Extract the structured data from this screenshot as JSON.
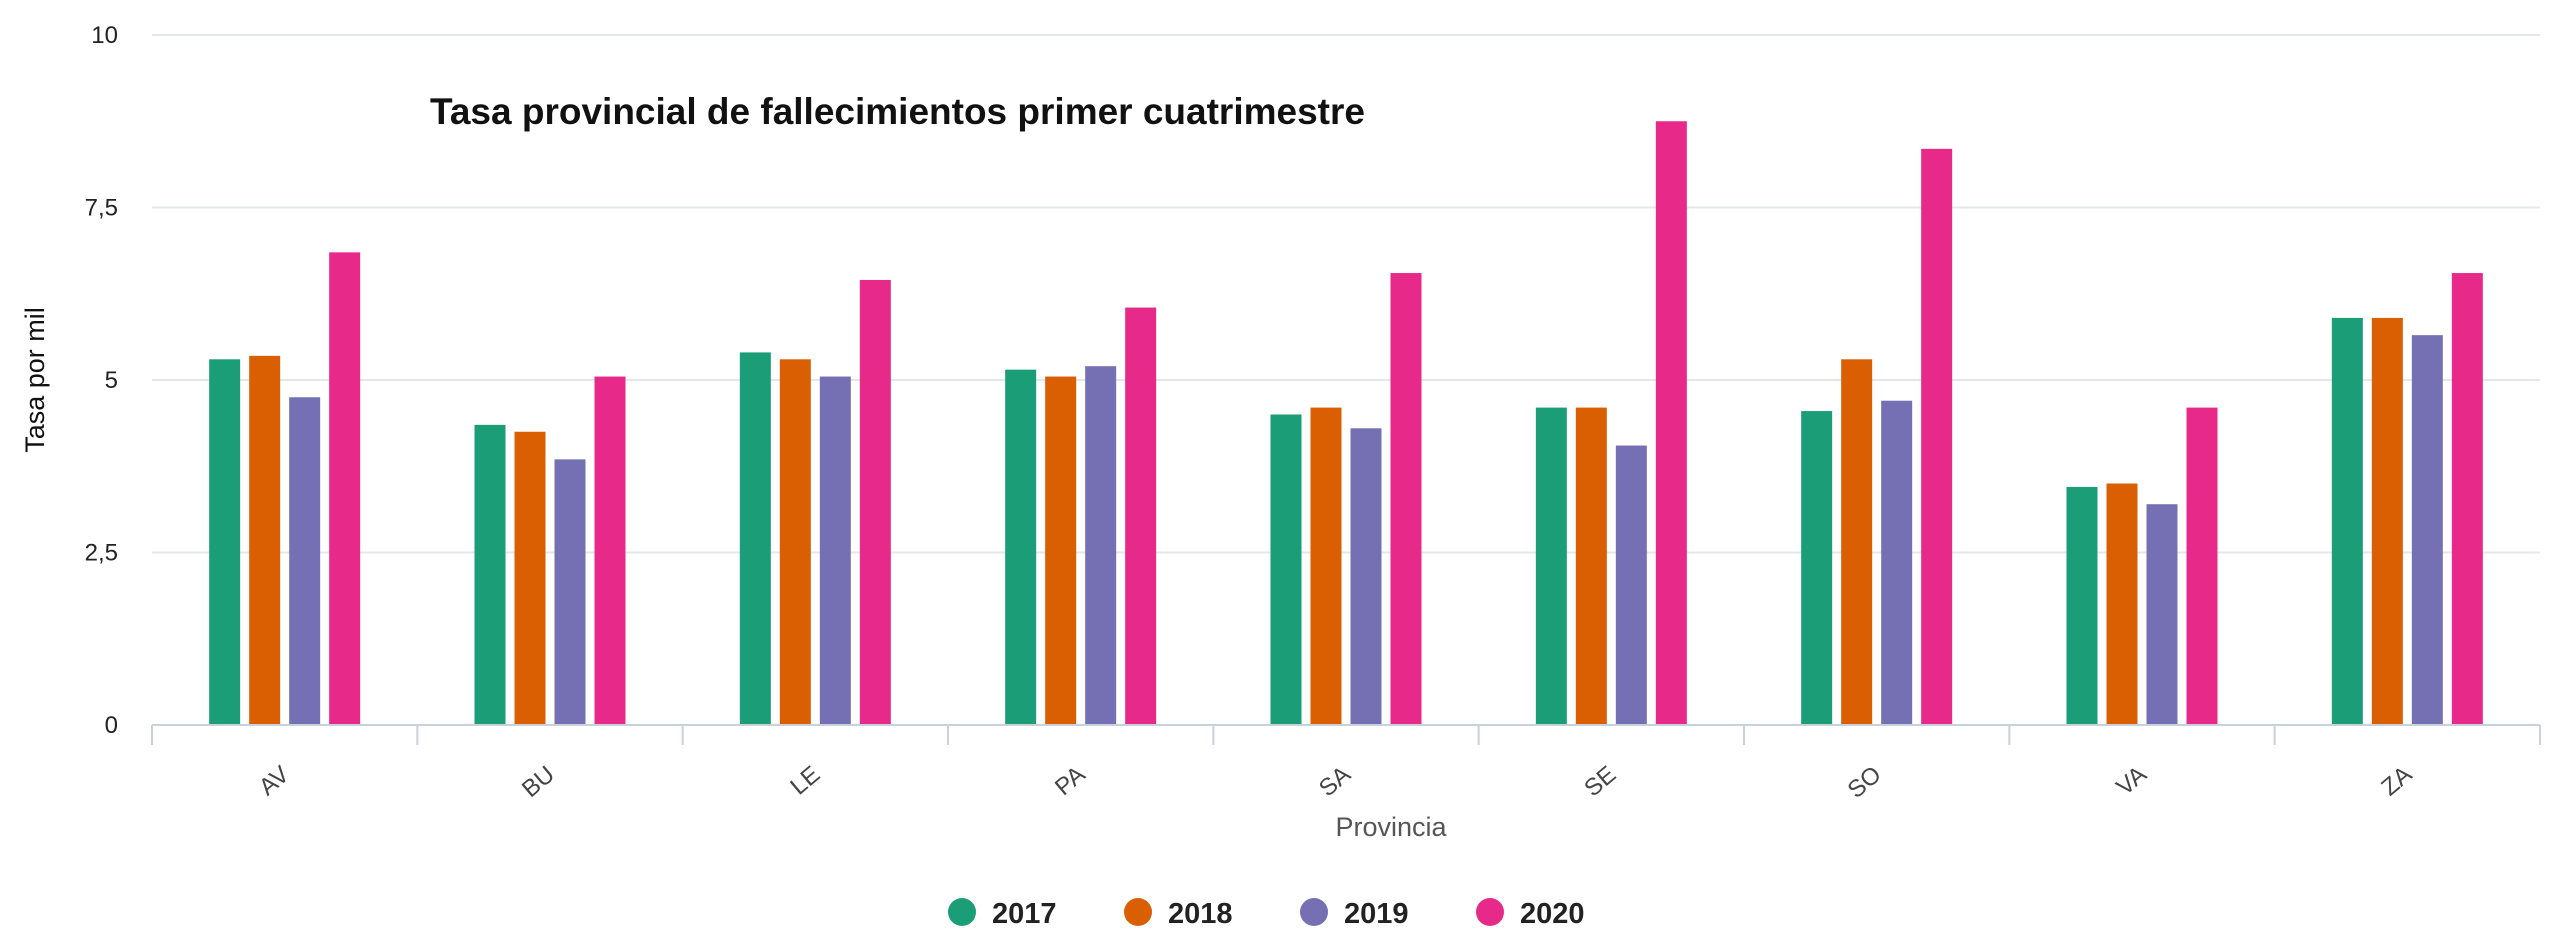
{
  "chart_data": {
    "type": "bar",
    "title": "Tasa provincial de fallecimientos primer cuatrimestre",
    "xlabel": "Provincia",
    "ylabel": "Tasa por mil",
    "ylim": [
      0,
      10
    ],
    "yticks": [
      0,
      2.5,
      5,
      7.5,
      10
    ],
    "ytick_labels": [
      "0",
      "2,5",
      "5",
      "7,5",
      "10"
    ],
    "categories": [
      "AV",
      "BU",
      "LE",
      "PA",
      "SA",
      "SE",
      "SO",
      "VA",
      "ZA"
    ],
    "grid": true,
    "legend_position": "bottom-center",
    "series": [
      {
        "name": "2017",
        "color": "#1b9e77",
        "values": [
          5.3,
          4.35,
          5.4,
          5.15,
          4.5,
          4.6,
          4.55,
          3.45,
          5.9
        ]
      },
      {
        "name": "2018",
        "color": "#d95f02",
        "values": [
          5.35,
          4.25,
          5.3,
          5.05,
          4.6,
          4.6,
          5.3,
          3.5,
          5.9
        ]
      },
      {
        "name": "2019",
        "color": "#7570b3",
        "values": [
          4.75,
          3.85,
          5.05,
          5.2,
          4.3,
          4.05,
          4.7,
          3.2,
          5.65
        ]
      },
      {
        "name": "2020",
        "color": "#e7298a",
        "values": [
          6.85,
          5.05,
          6.45,
          6.05,
          6.55,
          8.75,
          8.35,
          4.6,
          6.55
        ]
      }
    ]
  }
}
